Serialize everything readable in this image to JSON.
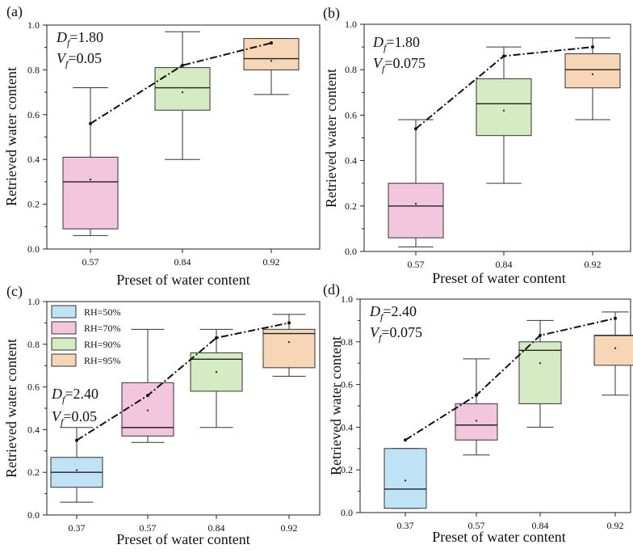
{
  "colors": {
    "RH=50%": "#bfe3f5",
    "RH=70%": "#f2c7dd",
    "RH=90%": "#d5ebc3",
    "RH=95%": "#f6d6b7",
    "trend": "#111111"
  },
  "chart_data": [
    {
      "type": "box",
      "panel_label": "(a)",
      "xlabel": "Preset of water content",
      "ylabel": "Retrieved water content",
      "ylim": [
        0,
        1.0
      ],
      "yticks": [
        "0.0",
        "0.2",
        "0.4",
        "0.6",
        "0.8",
        "1.0"
      ],
      "categories": [
        "0.57",
        "0.84",
        "0.92"
      ],
      "annotation": {
        "d_prefix": "D",
        "d_sub": "f",
        "d_value": "=1.80",
        "v_prefix": "V",
        "v_sub": "f",
        "v_value": "=0.05"
      },
      "boxes": [
        {
          "x": "0.57",
          "group": "RH=70%",
          "min": 0.06,
          "q1": 0.09,
          "median": 0.3,
          "q3": 0.41,
          "max": 0.72,
          "mean": 0.31
        },
        {
          "x": "0.84",
          "group": "RH=90%",
          "min": 0.4,
          "q1": 0.62,
          "median": 0.72,
          "q3": 0.81,
          "max": 0.97,
          "mean": 0.7
        },
        {
          "x": "0.92",
          "group": "RH=95%",
          "min": 0.69,
          "q1": 0.8,
          "median": 0.85,
          "q3": 0.94,
          "max": 0.94,
          "mean": 0.84
        }
      ],
      "trend": [
        {
          "x": "0.57",
          "y": 0.56
        },
        {
          "x": "0.84",
          "y": 0.82
        },
        {
          "x": "0.92",
          "y": 0.92
        }
      ]
    },
    {
      "type": "box",
      "panel_label": "(b)",
      "xlabel": "Preset of water content",
      "ylabel": "Retrieved water content",
      "ylim": [
        0,
        1.0
      ],
      "yticks": [
        "0.0",
        "0.2",
        "0.4",
        "0.6",
        "0.8",
        "1.0"
      ],
      "categories": [
        "0.57",
        "0.84",
        "0.92"
      ],
      "annotation": {
        "d_prefix": "D",
        "d_sub": "f",
        "d_value": "=1.80",
        "v_prefix": "V",
        "v_sub": "f",
        "v_value": "=0.075"
      },
      "boxes": [
        {
          "x": "0.57",
          "group": "RH=70%",
          "min": 0.02,
          "q1": 0.06,
          "median": 0.2,
          "q3": 0.3,
          "max": 0.58,
          "mean": 0.21
        },
        {
          "x": "0.84",
          "group": "RH=90%",
          "min": 0.3,
          "q1": 0.51,
          "median": 0.65,
          "q3": 0.76,
          "max": 0.9,
          "mean": 0.62
        },
        {
          "x": "0.92",
          "group": "RH=95%",
          "min": 0.58,
          "q1": 0.72,
          "median": 0.8,
          "q3": 0.87,
          "max": 0.94,
          "mean": 0.78
        }
      ],
      "trend": [
        {
          "x": "0.57",
          "y": 0.54
        },
        {
          "x": "0.84",
          "y": 0.86
        },
        {
          "x": "0.92",
          "y": 0.9
        }
      ]
    },
    {
      "type": "box",
      "panel_label": "(c)",
      "xlabel": "Preset of water content",
      "ylabel": "Retrieved water content",
      "ylim": [
        0,
        1.0
      ],
      "yticks": [
        "0.0",
        "0.2",
        "0.4",
        "0.6",
        "0.8",
        "1.0"
      ],
      "categories": [
        "0.37",
        "0.57",
        "0.84",
        "0.92"
      ],
      "annotation": {
        "d_prefix": "D",
        "d_sub": "f",
        "d_value": "=2.40",
        "v_prefix": "V",
        "v_sub": "f",
        "v_value": "=0.05"
      },
      "legend": [
        "RH=50%",
        "RH=70%",
        "RH=90%",
        "RH=95%"
      ],
      "boxes": [
        {
          "x": "0.37",
          "group": "RH=50%",
          "min": 0.06,
          "q1": 0.13,
          "median": 0.2,
          "q3": 0.27,
          "max": 0.41,
          "mean": 0.21
        },
        {
          "x": "0.57",
          "group": "RH=70%",
          "min": 0.34,
          "q1": 0.37,
          "median": 0.41,
          "q3": 0.62,
          "max": 0.87,
          "mean": 0.49
        },
        {
          "x": "0.84",
          "group": "RH=90%",
          "min": 0.41,
          "q1": 0.58,
          "median": 0.73,
          "q3": 0.76,
          "max": 0.87,
          "mean": 0.67
        },
        {
          "x": "0.92",
          "group": "RH=95%",
          "min": 0.65,
          "q1": 0.69,
          "median": 0.85,
          "q3": 0.87,
          "max": 0.94,
          "mean": 0.81
        }
      ],
      "trend": [
        {
          "x": "0.37",
          "y": 0.35
        },
        {
          "x": "0.57",
          "y": 0.56
        },
        {
          "x": "0.84",
          "y": 0.83
        },
        {
          "x": "0.92",
          "y": 0.9
        }
      ]
    },
    {
      "type": "box",
      "panel_label": "(d)",
      "xlabel": "Preset of water content",
      "ylabel": "Retrieved water content",
      "ylim": [
        0,
        1.0
      ],
      "yticks": [
        "0.0",
        "0.2",
        "0.4",
        "0.6",
        "0.8",
        "1.0"
      ],
      "categories": [
        "0.37",
        "0.57",
        "0.84",
        "0.92"
      ],
      "annotation": {
        "d_prefix": "D",
        "d_sub": "f",
        "d_value": "=2.40",
        "v_prefix": "V",
        "v_sub": "f",
        "v_value": "=0.075"
      },
      "boxes": [
        {
          "x": "0.37",
          "group": "RH=50%",
          "min": 0.02,
          "q1": 0.02,
          "median": 0.11,
          "q3": 0.3,
          "max": 0.3,
          "mean": 0.15
        },
        {
          "x": "0.57",
          "group": "RH=70%",
          "min": 0.27,
          "q1": 0.34,
          "median": 0.41,
          "q3": 0.51,
          "max": 0.72,
          "mean": 0.43
        },
        {
          "x": "0.84",
          "group": "RH=90%",
          "min": 0.4,
          "q1": 0.51,
          "median": 0.76,
          "q3": 0.8,
          "max": 0.9,
          "mean": 0.7
        },
        {
          "x": "0.92",
          "group": "RH=95%",
          "min": 0.55,
          "q1": 0.69,
          "median": 0.83,
          "q3": 0.83,
          "max": 0.94,
          "mean": 0.77
        }
      ],
      "trend": [
        {
          "x": "0.37",
          "y": 0.34
        },
        {
          "x": "0.57",
          "y": 0.55
        },
        {
          "x": "0.84",
          "y": 0.83
        },
        {
          "x": "0.92",
          "y": 0.91
        }
      ]
    }
  ]
}
